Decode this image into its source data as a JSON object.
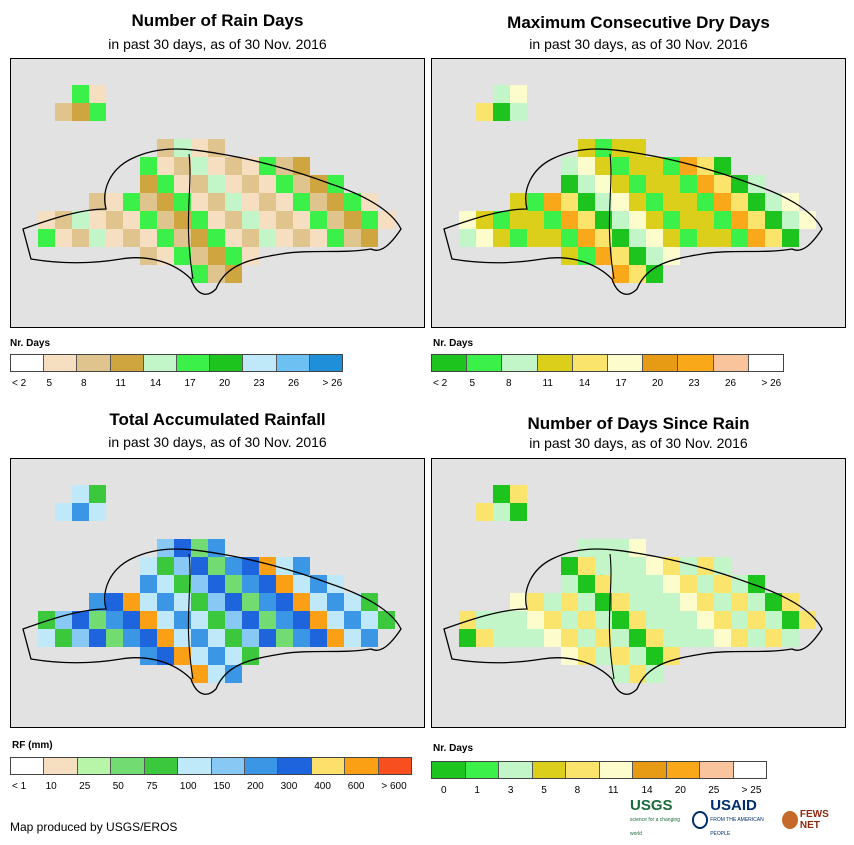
{
  "panels": [
    {
      "id": "rain_days",
      "title": "Number of Rain Days",
      "subtitle": "in past 30 days, as of 30 Nov. 2016",
      "legend_title": "Nr. Days",
      "legend_colors": [
        "#ffffff",
        "#f5dfc0",
        "#e0c48e",
        "#cfa540",
        "#c2f5c7",
        "#3cf04a",
        "#1ec41e",
        "#bfe9f8",
        "#6cc0f2",
        "#1e8fd8"
      ],
      "legend_labels": [
        "< 2",
        "5",
        "8",
        "11",
        "14",
        "17",
        "20",
        "23",
        "26",
        "> 26"
      ]
    },
    {
      "id": "dry_days",
      "title": "Maximum Consecutive Dry Days",
      "subtitle": "in past 30 days, as of 30 Nov. 2016",
      "legend_title": "Nr. Days",
      "legend_colors": [
        "#1ec41e",
        "#3cf04a",
        "#c2f5c7",
        "#dbcf1c",
        "#fbe46c",
        "#fcfccc",
        "#e79a14",
        "#f9a81a",
        "#f9c39b",
        "#ffffff"
      ],
      "legend_labels": [
        "< 2",
        "5",
        "8",
        "11",
        "14",
        "17",
        "20",
        "23",
        "26",
        "> 26"
      ]
    },
    {
      "id": "rainfall",
      "title": "Total Accumulated Rainfall",
      "subtitle": "in past 30 days, as of 30 Nov. 2016",
      "legend_title": "RF (mm)",
      "legend_colors": [
        "#ffffff",
        "#f5dfc0",
        "#b9f5a8",
        "#72dc72",
        "#3cc83c",
        "#bfe9f8",
        "#88c8f5",
        "#3c96e6",
        "#1e64dc",
        "#fde06c",
        "#fba014",
        "#f7501e"
      ],
      "legend_labels": [
        "< 1",
        "10",
        "25",
        "50",
        "75",
        "100",
        "150",
        "200",
        "300",
        "400",
        "600",
        "> 600"
      ]
    },
    {
      "id": "days_since_rain",
      "title": "Number of Days Since Rain",
      "subtitle": "in past 30 days, as of 30 Nov. 2016",
      "legend_title": "Nr. Days",
      "legend_colors": [
        "#1ec41e",
        "#3cf04a",
        "#c2f5c7",
        "#dbcf1c",
        "#fbe46c",
        "#fcfccc",
        "#e79a14",
        "#f9a81a",
        "#f9c39b",
        "#ffffff"
      ],
      "legend_labels": [
        "0",
        "1",
        "3",
        "5",
        "8",
        "11",
        "14",
        "20",
        "25",
        "> 25"
      ]
    }
  ],
  "footer": {
    "credit": "Map produced by USGS/EROS",
    "logos": {
      "usgs": "USGS",
      "usgs_tagline": "science for a changing world",
      "usaid": "USAID",
      "usaid_tagline": "FROM THE AMERICAN PEOPLE",
      "fews": "FEWS NET"
    }
  }
}
